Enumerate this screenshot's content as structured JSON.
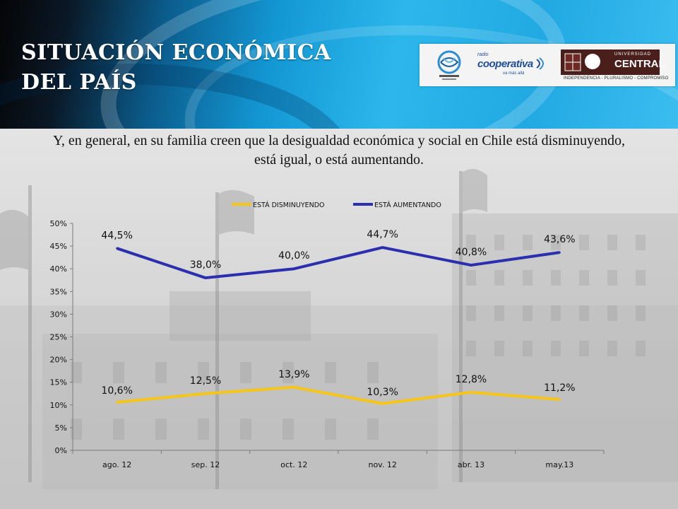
{
  "slide": {
    "title": "SITUACIÓN ECONÓMICA DEL PAÍS",
    "question": "Y, en general, en su familia creen que la desigualdad económica y social en Chile está disminuyendo, está igual, o está aumentando."
  },
  "logos": {
    "cooperativa_small": "radio",
    "cooperativa_name": "cooperativa",
    "cooperativa_tag": "va más allá",
    "central_top": "UNIVERSIDAD",
    "central_name": "CENTRAL",
    "central_motto": "INDEPENDENCIA - PLURALISMO - COMPROMISO"
  },
  "chart_data": {
    "type": "line",
    "categories": [
      "ago. 12",
      "sep. 12",
      "oct. 12",
      "nov. 12",
      "abr. 13",
      "may.13"
    ],
    "ylim": [
      0,
      50
    ],
    "yticks": [
      0,
      5,
      10,
      15,
      20,
      25,
      30,
      35,
      40,
      45,
      50
    ],
    "ytick_labels": [
      "0%",
      "5%",
      "10%",
      "15%",
      "20%",
      "25%",
      "30%",
      "35%",
      "40%",
      "45%",
      "50%"
    ],
    "grid": false,
    "legend_position": "top",
    "series": [
      {
        "name": "ESTÁ DISMINUYENDO",
        "color": "#f5c518",
        "values": [
          10.6,
          12.5,
          13.9,
          10.3,
          12.8,
          11.2
        ],
        "labels": [
          "10,6%",
          "12,5%",
          "13,9%",
          "10,3%",
          "12,8%",
          "11,2%"
        ]
      },
      {
        "name": "ESTÁ AUMENTANDO",
        "color": "#2b2fae",
        "values": [
          44.5,
          38.0,
          40.0,
          44.7,
          40.8,
          43.6
        ],
        "labels": [
          "44,5%",
          "38,0%",
          "40,0%",
          "44,7%",
          "40,8%",
          "43,6%"
        ]
      }
    ]
  }
}
